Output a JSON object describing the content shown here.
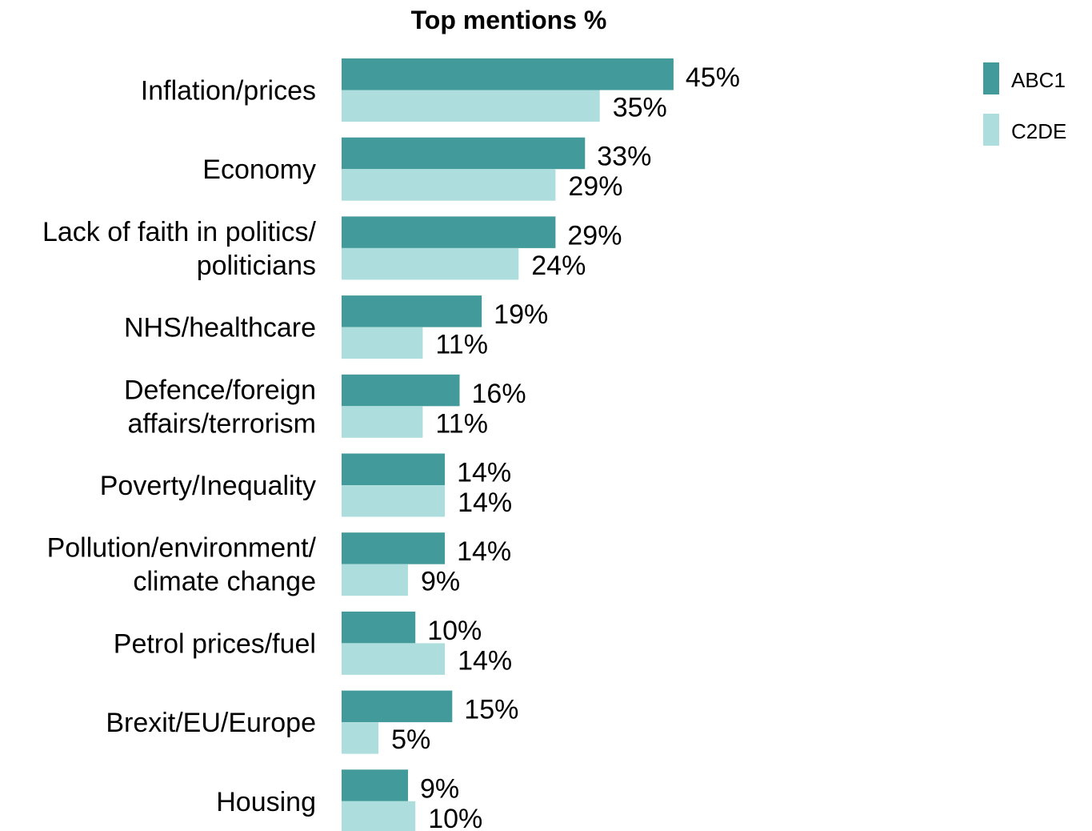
{
  "chart_data": {
    "type": "bar",
    "orientation": "horizontal",
    "title": "Top mentions %",
    "xlabel": "",
    "ylabel": "",
    "value_suffix": "%",
    "xlim": [
      0,
      45
    ],
    "grid": false,
    "legend_position": "top-right",
    "categories": [
      [
        "Inflation/prices"
      ],
      [
        "Economy"
      ],
      [
        "Lack of faith in politics/",
        "politicians"
      ],
      [
        "NHS/healthcare"
      ],
      [
        "Defence/foreign",
        "affairs/terrorism"
      ],
      [
        "Poverty/Inequality"
      ],
      [
        "Pollution/environment/",
        "climate change"
      ],
      [
        "Petrol prices/fuel"
      ],
      [
        "Brexit/EU/Europe"
      ],
      [
        "Housing"
      ]
    ],
    "series": [
      {
        "name": "ABC1",
        "color": "#429a9a",
        "values": [
          45,
          33,
          29,
          19,
          16,
          14,
          14,
          10,
          15,
          9
        ]
      },
      {
        "name": "C2DE",
        "color": "#addedd",
        "values": [
          35,
          29,
          24,
          11,
          11,
          14,
          9,
          14,
          5,
          10
        ]
      }
    ]
  }
}
